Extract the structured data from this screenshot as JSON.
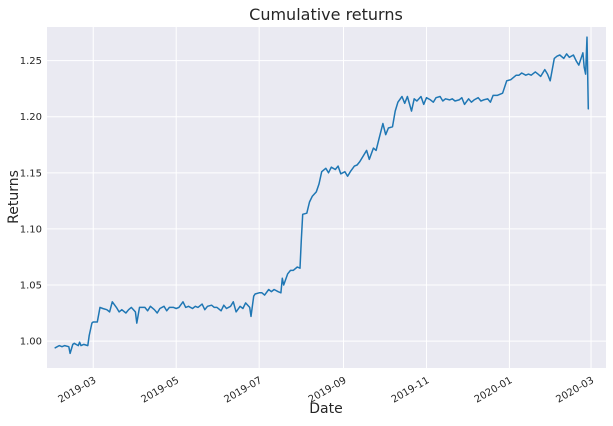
{
  "chart_data": {
    "type": "line",
    "title": "Cumulative returns",
    "xlabel": "Date",
    "ylabel": "Returns",
    "x_tick_labels": [
      "2019-03",
      "2019-05",
      "2019-07",
      "2019-09",
      "2019-11",
      "2020-01",
      "2020-03"
    ],
    "x_tick_dates": [
      "2019-03-01",
      "2019-05-01",
      "2019-07-01",
      "2019-09-01",
      "2019-11-01",
      "2020-01-01",
      "2020-03-01"
    ],
    "y_tick_labels": [
      "1.00",
      "1.05",
      "1.10",
      "1.15",
      "1.20",
      "1.25"
    ],
    "y_ticks": [
      1.0,
      1.05,
      1.1,
      1.15,
      1.2,
      1.25
    ],
    "xlim": [
      "2019-01-26",
      "2020-03-12"
    ],
    "ylim": [
      0.976,
      1.28
    ],
    "grid": true,
    "background": "#eaeaf2",
    "grid_color": "#ffffff",
    "line_color": "#1f77b4",
    "series": [
      {
        "x": [
          "2019-02-01",
          "2019-02-04",
          "2019-02-06",
          "2019-02-08",
          "2019-02-11",
          "2019-02-12",
          "2019-02-14",
          "2019-02-15",
          "2019-02-18",
          "2019-02-19",
          "2019-02-20",
          "2019-02-22",
          "2019-02-25",
          "2019-02-26",
          "2019-02-28",
          "2019-03-01",
          "2019-03-04",
          "2019-03-06",
          "2019-03-08",
          "2019-03-11",
          "2019-03-13",
          "2019-03-15",
          "2019-03-18",
          "2019-03-20",
          "2019-03-22",
          "2019-03-25",
          "2019-03-27",
          "2019-03-29",
          "2019-04-01",
          "2019-04-02",
          "2019-04-04",
          "2019-04-08",
          "2019-04-10",
          "2019-04-12",
          "2019-04-15",
          "2019-04-17",
          "2019-04-19",
          "2019-04-22",
          "2019-04-24",
          "2019-04-26",
          "2019-04-29",
          "2019-05-01",
          "2019-05-03",
          "2019-05-06",
          "2019-05-08",
          "2019-05-10",
          "2019-05-13",
          "2019-05-15",
          "2019-05-17",
          "2019-05-20",
          "2019-05-22",
          "2019-05-24",
          "2019-05-27",
          "2019-05-29",
          "2019-05-31",
          "2019-06-03",
          "2019-06-05",
          "2019-06-07",
          "2019-06-10",
          "2019-06-12",
          "2019-06-14",
          "2019-06-17",
          "2019-06-19",
          "2019-06-21",
          "2019-06-24",
          "2019-06-25",
          "2019-06-27",
          "2019-06-28",
          "2019-07-01",
          "2019-07-03",
          "2019-07-05",
          "2019-07-08",
          "2019-07-10",
          "2019-07-12",
          "2019-07-15",
          "2019-07-17",
          "2019-07-18",
          "2019-07-19",
          "2019-07-22",
          "2019-07-24",
          "2019-07-26",
          "2019-07-29",
          "2019-07-31",
          "2019-08-01",
          "2019-08-02",
          "2019-08-05",
          "2019-08-07",
          "2019-08-09",
          "2019-08-12",
          "2019-08-14",
          "2019-08-16",
          "2019-08-19",
          "2019-08-21",
          "2019-08-23",
          "2019-08-26",
          "2019-08-28",
          "2019-08-30",
          "2019-09-02",
          "2019-09-04",
          "2019-09-06",
          "2019-09-09",
          "2019-09-11",
          "2019-09-13",
          "2019-09-16",
          "2019-09-18",
          "2019-09-20",
          "2019-09-23",
          "2019-09-25",
          "2019-09-27",
          "2019-09-30",
          "2019-10-02",
          "2019-10-04",
          "2019-10-07",
          "2019-10-09",
          "2019-10-11",
          "2019-10-14",
          "2019-10-16",
          "2019-10-18",
          "2019-10-21",
          "2019-10-23",
          "2019-10-25",
          "2019-10-28",
          "2019-10-30",
          "2019-11-01",
          "2019-11-04",
          "2019-11-06",
          "2019-11-08",
          "2019-11-11",
          "2019-11-13",
          "2019-11-15",
          "2019-11-18",
          "2019-11-20",
          "2019-11-22",
          "2019-11-25",
          "2019-11-27",
          "2019-11-29",
          "2019-12-02",
          "2019-12-04",
          "2019-12-06",
          "2019-12-09",
          "2019-12-11",
          "2019-12-13",
          "2019-12-16",
          "2019-12-18",
          "2019-12-20",
          "2019-12-23",
          "2019-12-27",
          "2019-12-30",
          "2020-01-02",
          "2020-01-06",
          "2020-01-08",
          "2020-01-10",
          "2020-01-13",
          "2020-01-15",
          "2020-01-17",
          "2020-01-20",
          "2020-01-22",
          "2020-01-24",
          "2020-01-27",
          "2020-01-29",
          "2020-01-31",
          "2020-02-03",
          "2020-02-05",
          "2020-02-07",
          "2020-02-10",
          "2020-02-12",
          "2020-02-14",
          "2020-02-17",
          "2020-02-19",
          "2020-02-21",
          "2020-02-24",
          "2020-02-25",
          "2020-02-26",
          "2020-02-27",
          "2020-02-28"
        ],
        "y": [
          0.994,
          0.996,
          0.995,
          0.996,
          0.995,
          0.989,
          0.997,
          0.998,
          0.996,
          0.999,
          0.996,
          0.997,
          0.996,
          1.005,
          1.016,
          1.017,
          1.017,
          1.03,
          1.029,
          1.028,
          1.026,
          1.035,
          1.03,
          1.026,
          1.028,
          1.025,
          1.028,
          1.03,
          1.026,
          1.016,
          1.03,
          1.03,
          1.027,
          1.031,
          1.028,
          1.025,
          1.029,
          1.031,
          1.027,
          1.03,
          1.03,
          1.029,
          1.03,
          1.035,
          1.03,
          1.031,
          1.029,
          1.031,
          1.03,
          1.033,
          1.028,
          1.031,
          1.032,
          1.03,
          1.03,
          1.027,
          1.032,
          1.029,
          1.031,
          1.035,
          1.026,
          1.031,
          1.029,
          1.034,
          1.03,
          1.022,
          1.04,
          1.042,
          1.043,
          1.043,
          1.041,
          1.046,
          1.044,
          1.046,
          1.044,
          1.043,
          1.056,
          1.05,
          1.06,
          1.063,
          1.063,
          1.066,
          1.065,
          1.09,
          1.113,
          1.114,
          1.124,
          1.129,
          1.133,
          1.14,
          1.151,
          1.154,
          1.15,
          1.155,
          1.153,
          1.156,
          1.149,
          1.151,
          1.147,
          1.151,
          1.156,
          1.157,
          1.16,
          1.166,
          1.17,
          1.162,
          1.172,
          1.17,
          1.18,
          1.194,
          1.184,
          1.19,
          1.191,
          1.205,
          1.213,
          1.218,
          1.212,
          1.218,
          1.205,
          1.216,
          1.214,
          1.218,
          1.211,
          1.217,
          1.215,
          1.213,
          1.217,
          1.218,
          1.214,
          1.216,
          1.215,
          1.216,
          1.214,
          1.215,
          1.217,
          1.211,
          1.216,
          1.213,
          1.215,
          1.217,
          1.214,
          1.215,
          1.216,
          1.213,
          1.219,
          1.219,
          1.221,
          1.232,
          1.233,
          1.237,
          1.237,
          1.239,
          1.237,
          1.238,
          1.237,
          1.24,
          1.238,
          1.236,
          1.242,
          1.238,
          1.232,
          1.252,
          1.254,
          1.255,
          1.252,
          1.256,
          1.253,
          1.255,
          1.25,
          1.246,
          1.257,
          1.244,
          1.238,
          1.271,
          1.207
        ]
      }
    ]
  }
}
